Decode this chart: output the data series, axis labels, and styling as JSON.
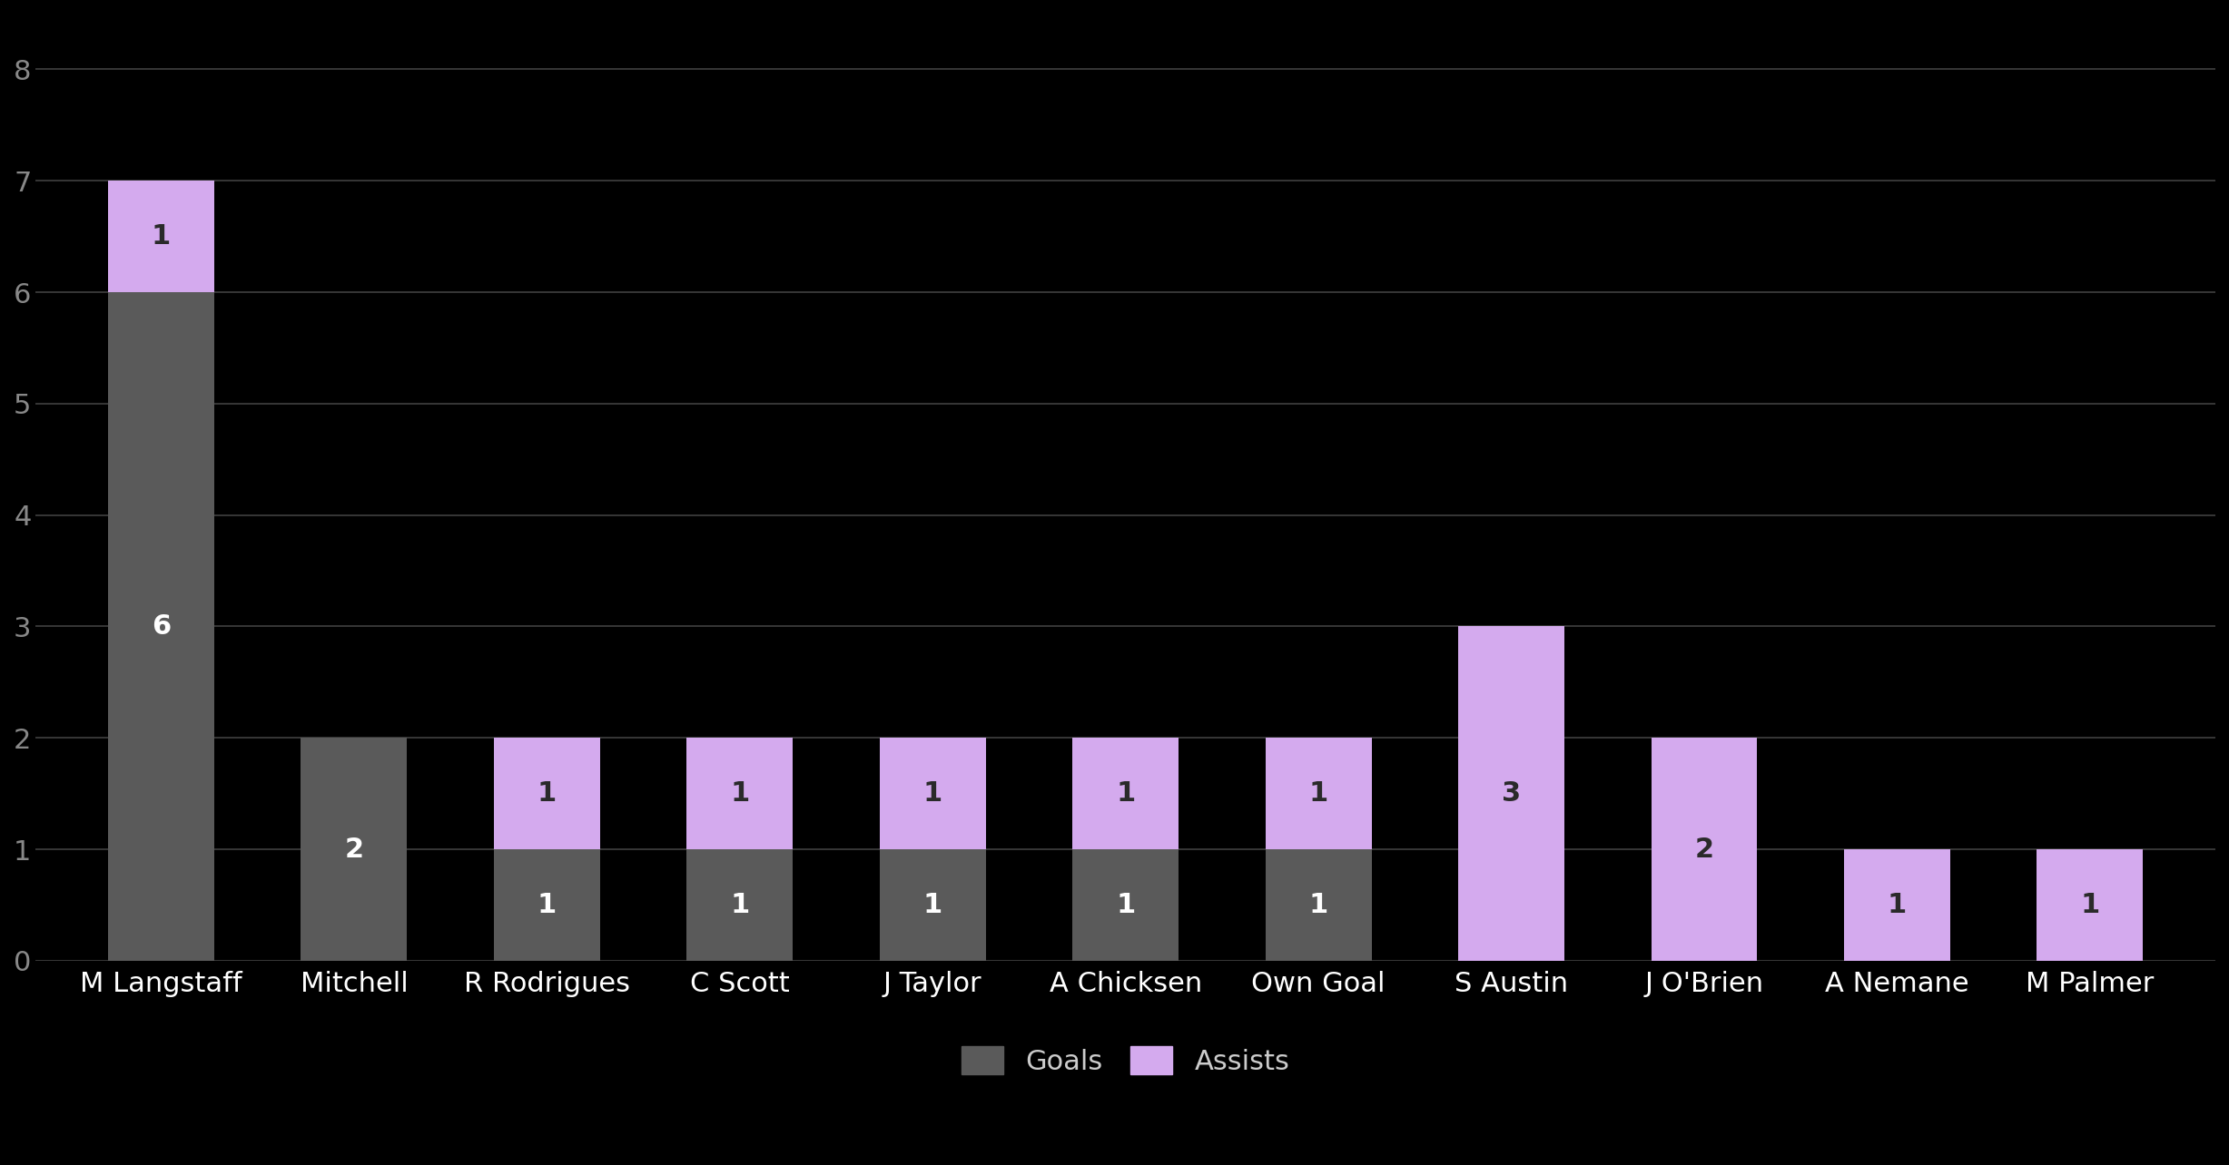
{
  "categories": [
    "M Langstaff",
    "Mitchell",
    "R Rodrigues",
    "C Scott",
    "J Taylor",
    "A Chicksen",
    "Own Goal",
    "S Austin",
    "J O'Brien",
    "A Nemane",
    "M Palmer"
  ],
  "goals": [
    6,
    2,
    1,
    1,
    1,
    1,
    1,
    0,
    0,
    0,
    0
  ],
  "assists": [
    1,
    0,
    1,
    1,
    1,
    1,
    1,
    3,
    2,
    1,
    1
  ],
  "goal_color": "#5a5a5a",
  "assist_color": "#d4aaee",
  "background_color": "#000000",
  "text_color_on_grey": "#ffffff",
  "text_color_on_purple": "#2a2a2a",
  "grid_color": "#404040",
  "ylim": [
    0,
    8.5
  ],
  "yticks": [
    0,
    1,
    2,
    3,
    4,
    5,
    6,
    7,
    8
  ],
  "bar_width": 0.55,
  "legend_goals": "Goals",
  "legend_assists": "Assists",
  "label_fontsize": 22,
  "tick_fontsize": 22,
  "value_fontsize": 22,
  "grid_linewidth": 1.2
}
